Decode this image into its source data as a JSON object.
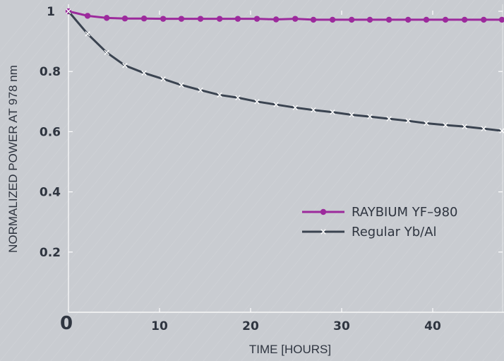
{
  "chart_data": {
    "type": "line",
    "xlabel": "TIME [HOURS]",
    "ylabel": "NORMALIZED POWER AT 978 nm",
    "xlim": [
      0,
      48
    ],
    "ylim": [
      0,
      1
    ],
    "x_ticks": [
      "0",
      "10",
      "20",
      "30",
      "40"
    ],
    "y_ticks": [
      "0.2",
      "0.4",
      "0.6",
      "0.8",
      "1"
    ],
    "legend_position": "right",
    "colors": {
      "background": "#c9ccd1",
      "series_1": "#9c2a9c",
      "series_2": "#3a4350",
      "text": "#2f3540"
    },
    "series": [
      {
        "name": "RAYBIUM YF–980",
        "marker": "circle",
        "x": [
          0,
          2.1,
          4.2,
          6.2,
          8.3,
          10.4,
          12.4,
          14.5,
          16.6,
          18.6,
          20.7,
          22.8,
          24.9,
          26.9,
          29.0,
          31.1,
          33.1,
          35.2,
          37.3,
          39.3,
          41.4,
          43.5,
          45.6,
          47.6
        ],
        "values": [
          1.0,
          0.985,
          0.978,
          0.976,
          0.976,
          0.975,
          0.975,
          0.975,
          0.975,
          0.975,
          0.975,
          0.973,
          0.975,
          0.972,
          0.972,
          0.972,
          0.972,
          0.972,
          0.972,
          0.972,
          0.972,
          0.972,
          0.972,
          0.972
        ]
      },
      {
        "name": "Regular Yb/Al",
        "marker": "x",
        "x": [
          0,
          2.1,
          4.2,
          6.2,
          8.3,
          10.4,
          12.4,
          14.5,
          16.6,
          18.6,
          20.7,
          22.8,
          24.9,
          26.9,
          29.0,
          31.1,
          33.1,
          35.2,
          37.3,
          39.3,
          41.4,
          43.5,
          45.6,
          47.6
        ],
        "values": [
          1.0,
          0.925,
          0.863,
          0.82,
          0.795,
          0.775,
          0.755,
          0.738,
          0.722,
          0.713,
          0.7,
          0.69,
          0.68,
          0.672,
          0.665,
          0.656,
          0.65,
          0.643,
          0.636,
          0.628,
          0.622,
          0.617,
          0.61,
          0.603
        ]
      }
    ]
  }
}
